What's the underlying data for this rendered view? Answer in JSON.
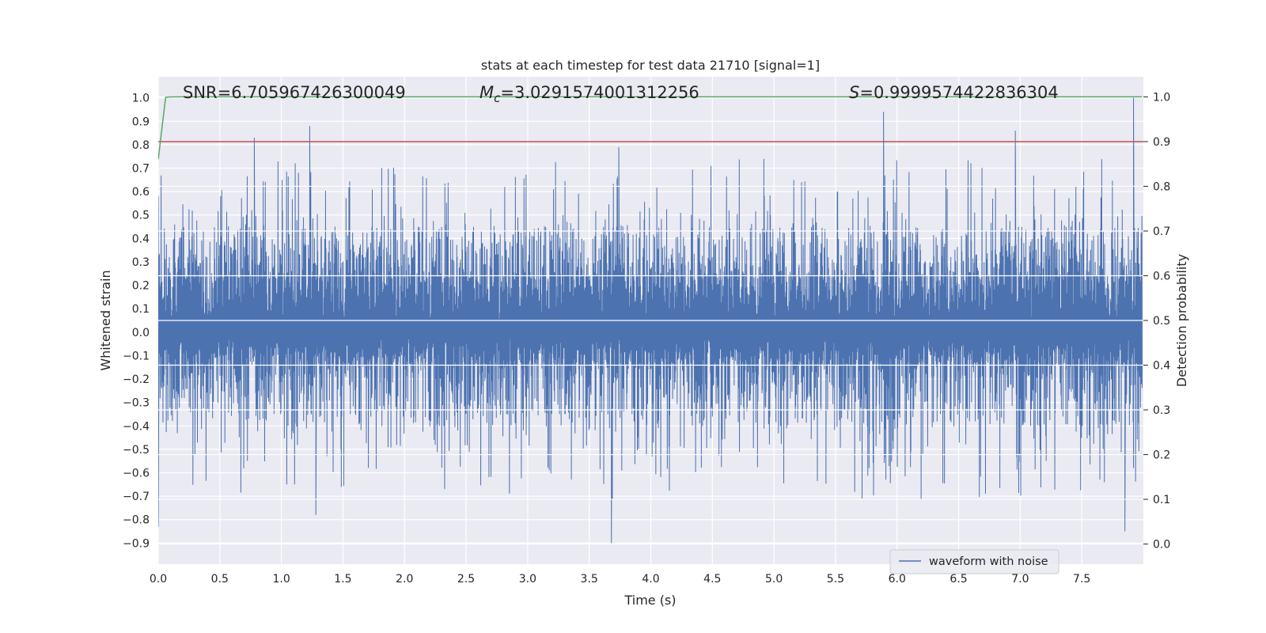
{
  "chart_data": {
    "type": "line",
    "title": "stats at each timestep for test data 21710 [signal=1]",
    "xlabel": "Time (s)",
    "ylabel_left": "Whitened strain",
    "ylabel_right": "Detection probability",
    "xlim": [
      0.0,
      8.0
    ],
    "ylim_left": [
      -0.99,
      1.09
    ],
    "ylim_right": [
      0.0,
      1.0
    ],
    "ylim_right_view": [
      -0.045,
      1.045
    ],
    "x_ticks": [
      "0.0",
      "0.5",
      "1.0",
      "1.5",
      "2.0",
      "2.5",
      "3.0",
      "3.5",
      "4.0",
      "4.5",
      "5.0",
      "5.5",
      "6.0",
      "6.5",
      "7.0",
      "7.5"
    ],
    "x_tick_values": [
      0.0,
      0.5,
      1.0,
      1.5,
      2.0,
      2.5,
      3.0,
      3.5,
      4.0,
      4.5,
      5.0,
      5.5,
      6.0,
      6.5,
      7.0,
      7.5
    ],
    "y_left_ticks": [
      "1.0",
      "0.9",
      "0.8",
      "0.7",
      "0.6",
      "0.5",
      "0.4",
      "0.3",
      "0.2",
      "0.1",
      "0.0",
      "−0.1",
      "−0.2",
      "−0.3",
      "−0.4",
      "−0.5",
      "−0.6",
      "−0.7",
      "−0.8",
      "−0.9"
    ],
    "y_left_tick_values": [
      1.0,
      0.9,
      0.8,
      0.7,
      0.6,
      0.5,
      0.4,
      0.3,
      0.2,
      0.1,
      0.0,
      -0.1,
      -0.2,
      -0.3,
      -0.4,
      -0.5,
      -0.6,
      -0.7,
      -0.8,
      -0.9
    ],
    "y_right_ticks": [
      "1.0",
      "0.9",
      "0.8",
      "0.7",
      "0.6",
      "0.5",
      "0.4",
      "0.3",
      "0.2",
      "0.1",
      "0.0"
    ],
    "y_right_tick_values": [
      1.0,
      0.9,
      0.8,
      0.7,
      0.6,
      0.5,
      0.4,
      0.3,
      0.2,
      0.1,
      0.0
    ],
    "annotations": {
      "snr": "SNR=6.705967426300049",
      "mc_symbol": "M",
      "mc_sub": "c",
      "mc_value": "=3.0291574001312256",
      "s_symbol": "S",
      "s_value": "=0.9999574422836304"
    },
    "legend": {
      "entries": [
        "waveform with noise"
      ],
      "placement": "lower-right"
    },
    "grid": true,
    "colors": {
      "waveform": "#4c72b0",
      "probability": "#55a868",
      "threshold": "#c44e52",
      "background": "#eaeaf2",
      "grid": "#ffffff"
    },
    "series": [
      {
        "name": "waveform with noise",
        "axis": "left",
        "kind": "noise",
        "duration": 7.99,
        "core_envelope": [
          -0.14,
          0.24
        ],
        "typical_envelope": [
          -0.4,
          0.45
        ],
        "peaks_pos": [
          [
            0.78,
            0.83
          ],
          [
            1.23,
            0.88
          ],
          [
            3.74,
            0.79
          ],
          [
            5.89,
            0.94
          ],
          [
            6.96,
            0.86
          ],
          [
            7.92,
            1.0
          ]
        ],
        "peaks_neg": [
          [
            0.0,
            -0.83
          ],
          [
            1.28,
            -0.78
          ],
          [
            3.68,
            -0.9
          ],
          [
            7.85,
            -0.85
          ]
        ]
      },
      {
        "name": "detection probability",
        "axis": "right",
        "x": [
          0.0,
          0.03,
          0.06,
          0.1,
          0.2,
          0.5,
          7.99
        ],
        "y": [
          0.86,
          0.93,
          0.999,
          0.9999,
          1.0,
          1.0,
          1.0
        ]
      },
      {
        "name": "threshold",
        "axis": "right",
        "x": [
          0.0,
          7.99
        ],
        "y": [
          0.9,
          0.9
        ]
      }
    ]
  }
}
